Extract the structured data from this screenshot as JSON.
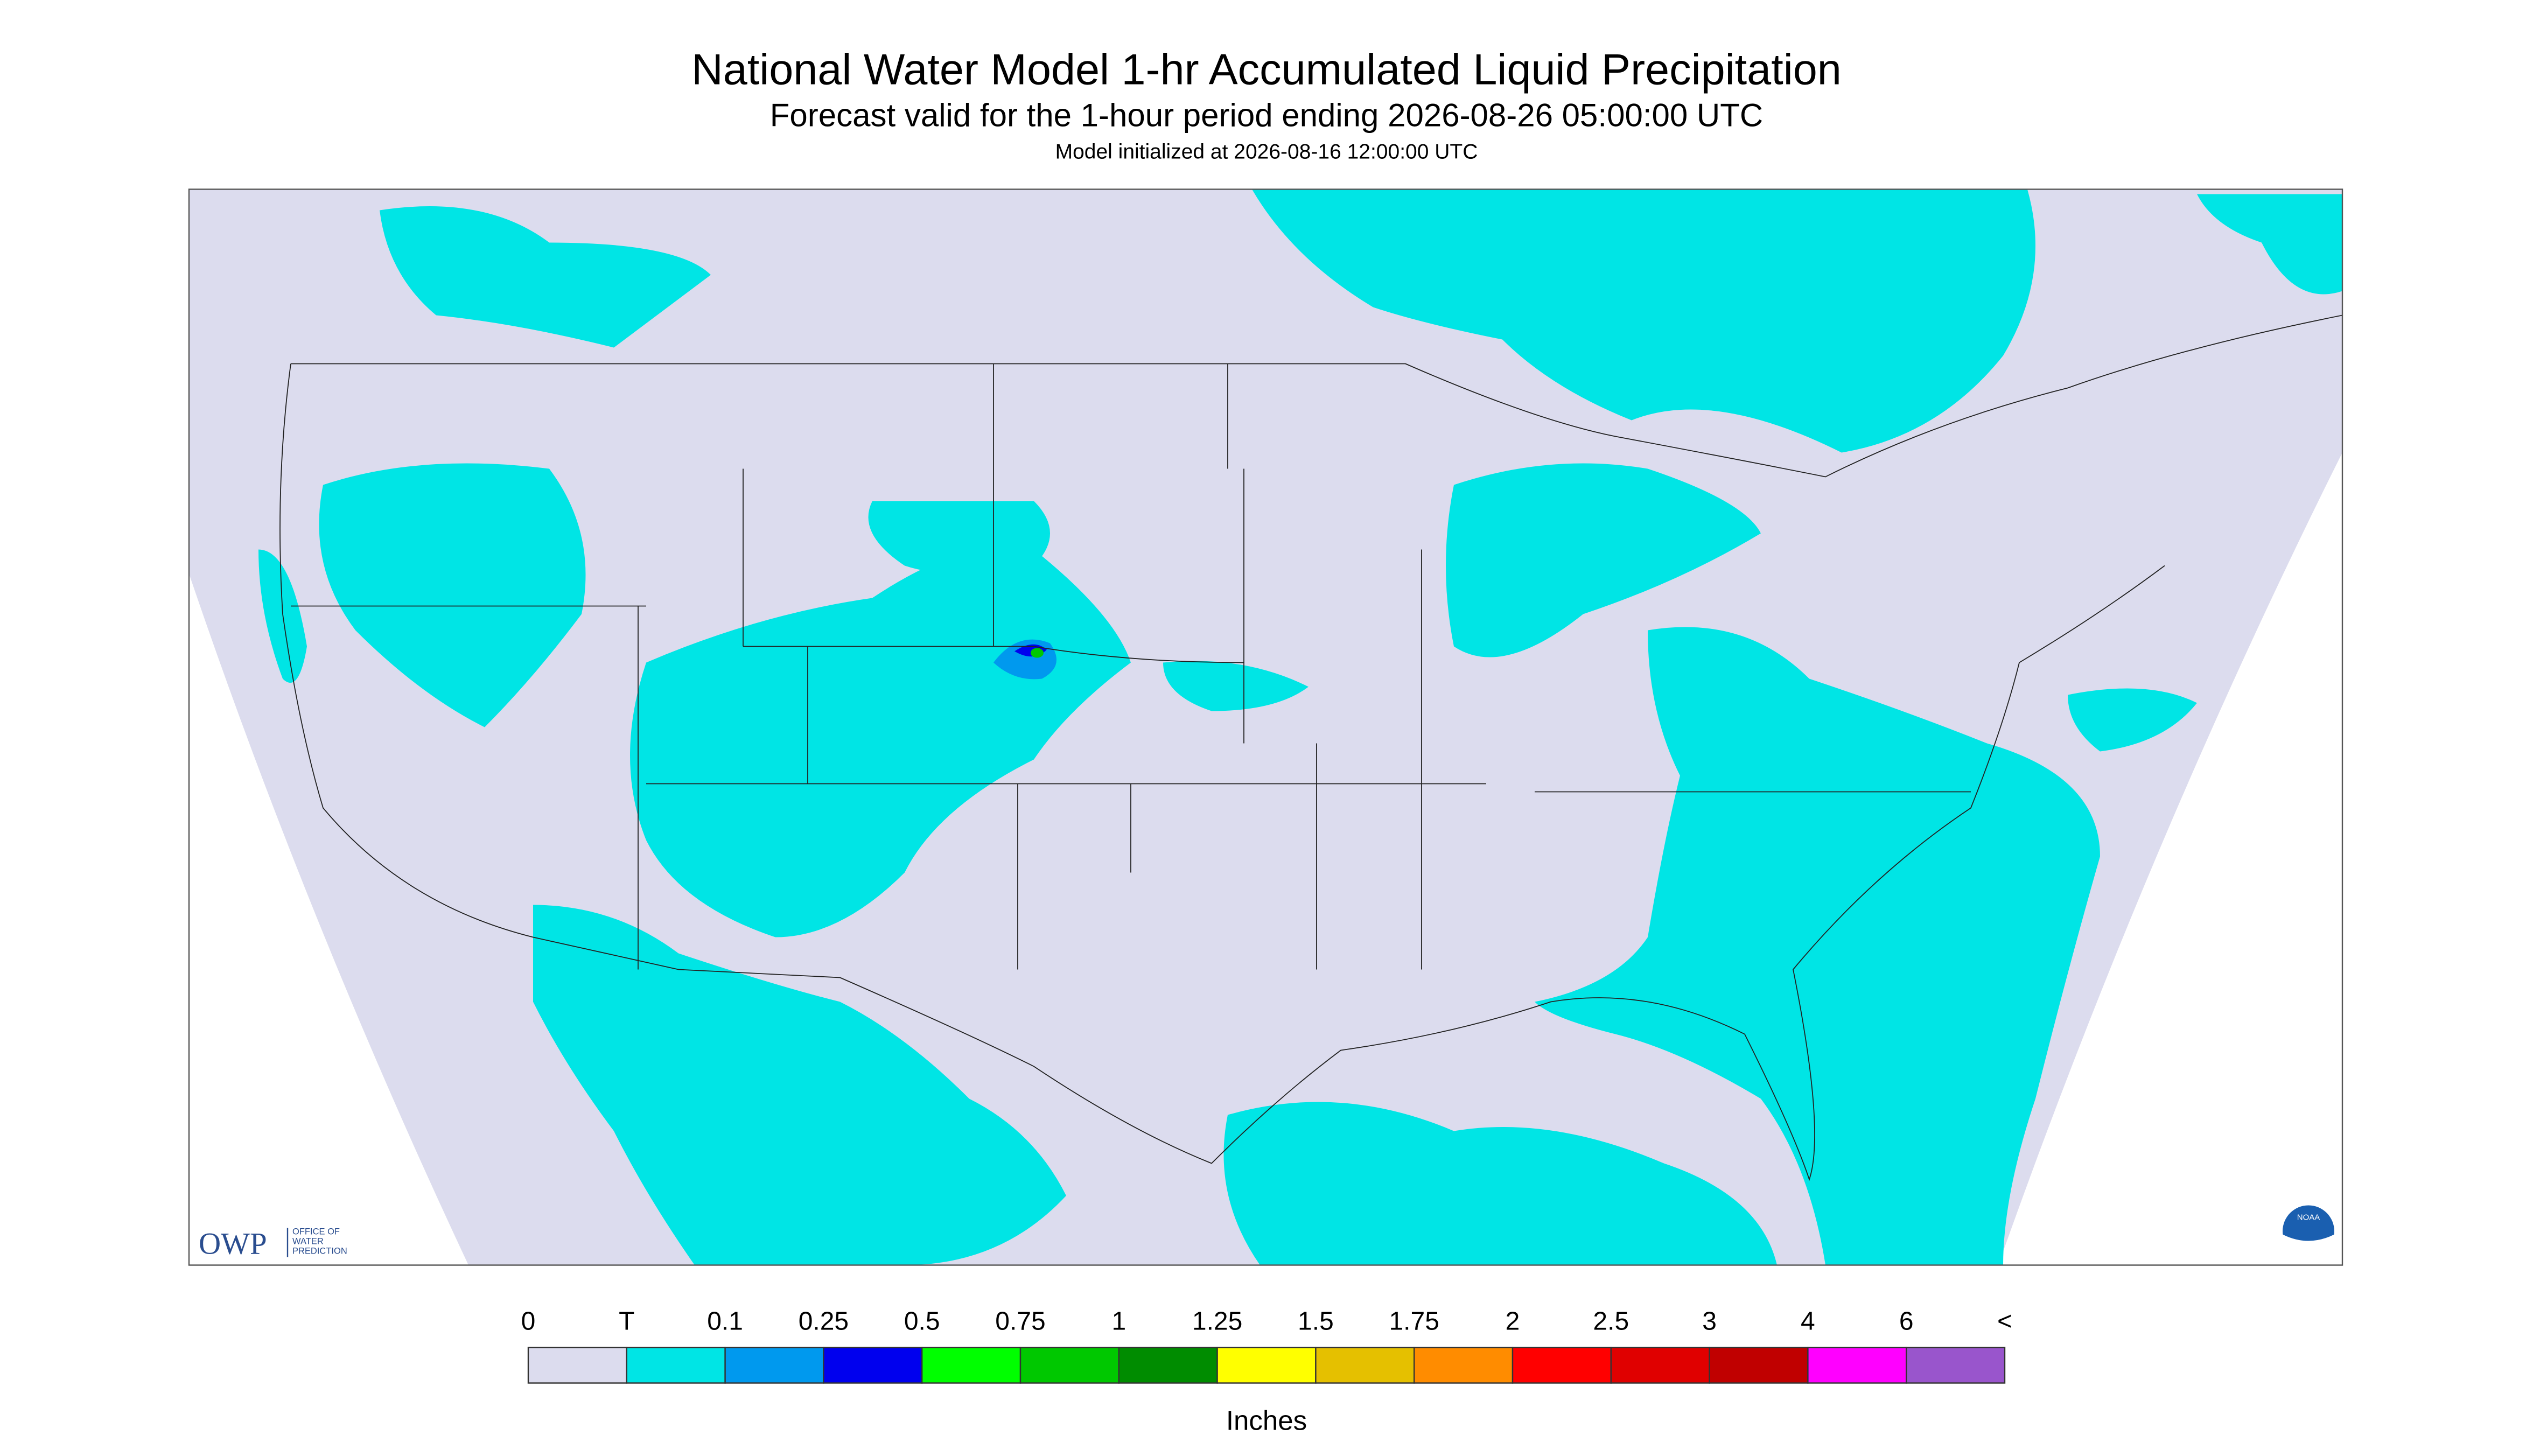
{
  "header": {
    "title": "National Water Model 1-hr Accumulated Liquid Precipitation",
    "subtitle": "Forecast valid for the 1-hour period ending 2026-08-26 05:00:00 UTC",
    "note": "Model initialized at 2026-08-16 12:00:00 UTC"
  },
  "legend": {
    "labels": [
      "0",
      "T",
      "0.1",
      "0.25",
      "0.5",
      "0.75",
      "1",
      "1.25",
      "1.5",
      "1.75",
      "2",
      "2.5",
      "3",
      "4",
      "6",
      "<"
    ],
    "colors": [
      "#dcdcee",
      "#00e5e5",
      "#0099ee",
      "#0000ee",
      "#00ff00",
      "#00c800",
      "#008c00",
      "#ffff00",
      "#e5c000",
      "#ff8c00",
      "#ff0000",
      "#e00000",
      "#c00000",
      "#ff00ff",
      "#9955cc"
    ],
    "units": "Inches"
  },
  "logos": {
    "owp": "OWP",
    "owp_name": [
      "OFFICE OF",
      "WATER",
      "PREDICTION"
    ],
    "noaa": "NOAA"
  }
}
